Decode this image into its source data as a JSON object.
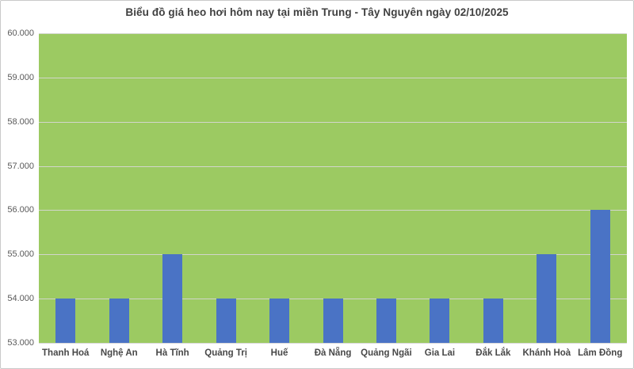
{
  "chart_data": {
    "type": "bar",
    "title": "Biểu đồ giá heo hơi hôm nay tại miền Trung - Tây Nguyên ngày 02/10/2025",
    "categories": [
      "Thanh Hoá",
      "Nghệ An",
      "Hà Tĩnh",
      "Quảng Trị",
      "Huế",
      "Đà Nẵng",
      "Quảng Ngãi",
      "Gia Lai",
      "Đắk Lắk",
      "Khánh Hoà",
      "Lâm Đồng"
    ],
    "values": [
      54000,
      54000,
      55000,
      54000,
      54000,
      54000,
      54000,
      54000,
      54000,
      55000,
      56000
    ],
    "xlabel": "",
    "ylabel": "",
    "ylim": [
      53000,
      60000
    ],
    "ytick_step": 1000,
    "ytick_labels": [
      "53.000",
      "54.000",
      "55.000",
      "56.000",
      "57.000",
      "58.000",
      "59.000",
      "60.000"
    ],
    "grid": true,
    "legend": "none",
    "colors": {
      "plot_background": "#9cca62",
      "bar_fill": "#4a73c5",
      "gridline": "#d2d6cb",
      "axis_line": "#d9d9d9",
      "title_text": "#404040",
      "axis_text": "#595959",
      "category_text": "#484848",
      "chart_background": "#ffffff",
      "chart_border": "#c9c9c9"
    }
  }
}
